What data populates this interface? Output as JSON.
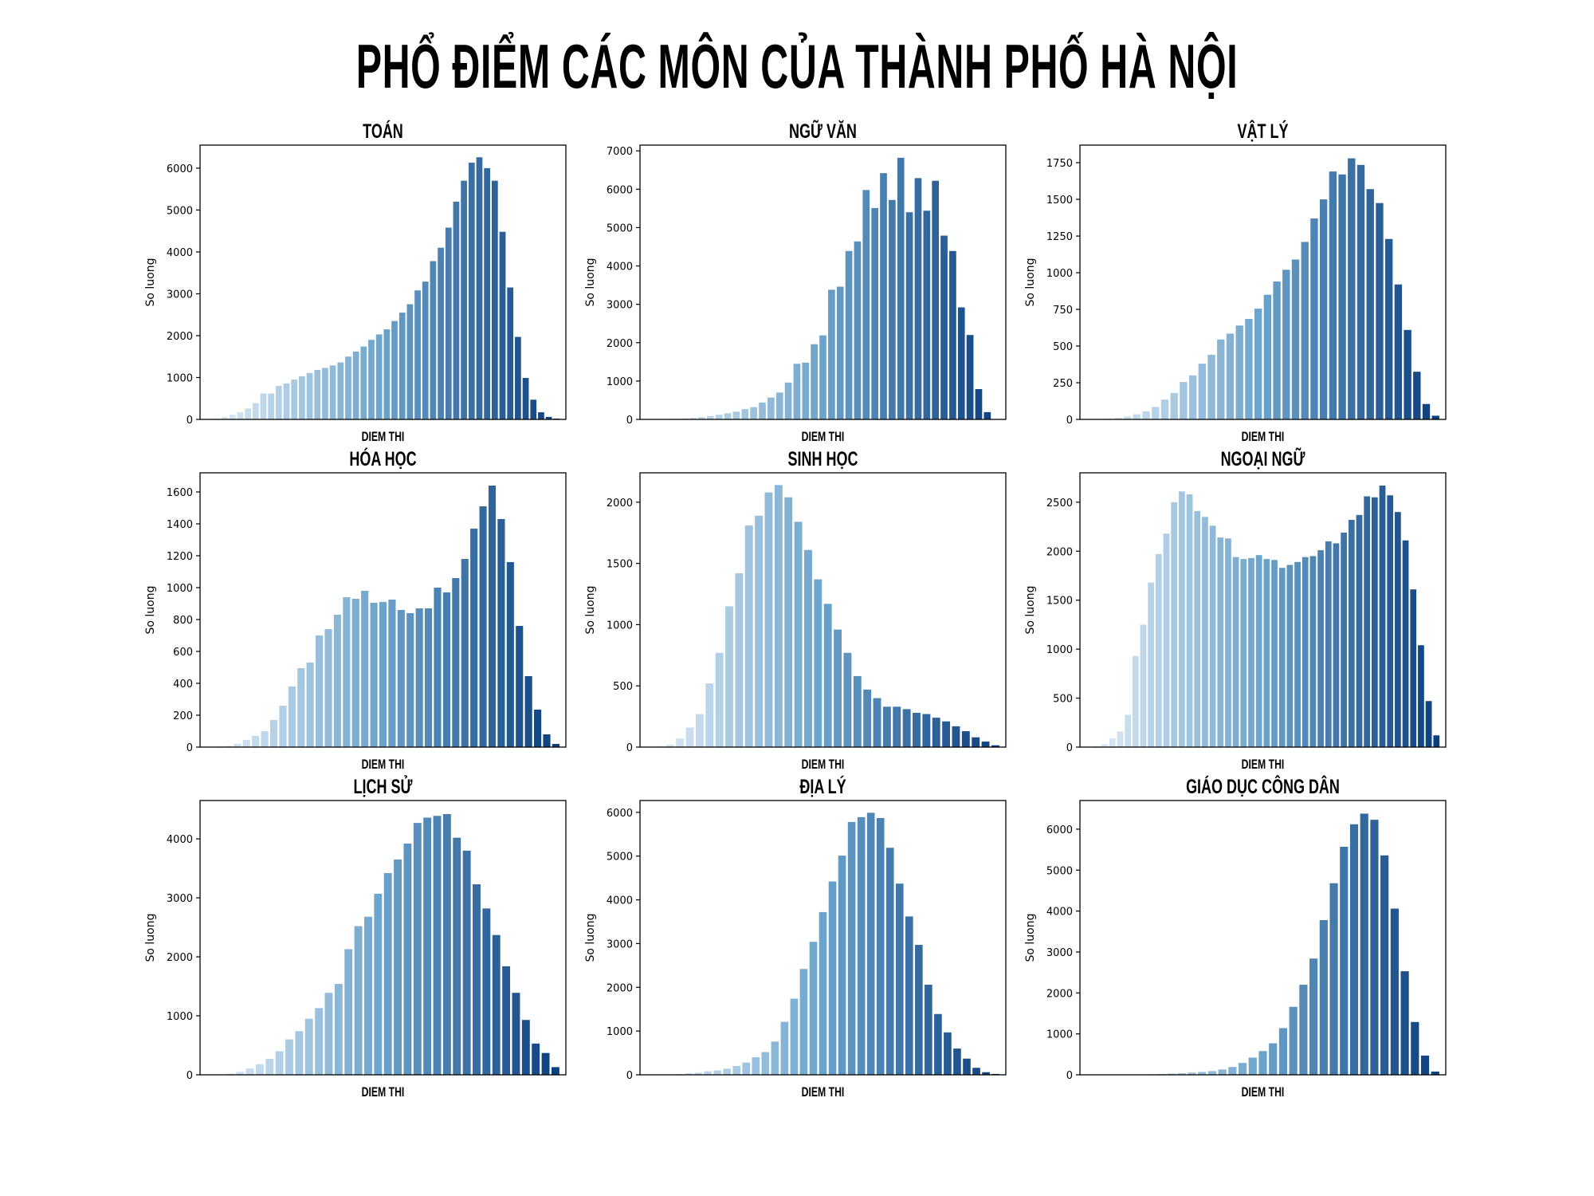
{
  "page_title": "PHỔ ĐIỂM CÁC MÔN CỦA THÀNH PHỐ HÀ NỘI",
  "palette": {
    "light": "#e3eef8",
    "mid": "#6ba3cb",
    "dark": "#0c3f7e",
    "axis": "#000000"
  },
  "chart_data": [
    {
      "type": "bar",
      "title": "TOÁN",
      "xlabel": "DIEM THI",
      "ylabel": "So luong",
      "ylim": [
        0,
        6550
      ],
      "yticks": [
        0,
        1000,
        2000,
        3000,
        4000,
        5000,
        6000
      ],
      "ytick_labels": [
        "0",
        "1000",
        "2000",
        "3000",
        "4000",
        "5000",
        "6000"
      ],
      "values": [
        5,
        20,
        60,
        110,
        170,
        260,
        390,
        620,
        620,
        800,
        860,
        950,
        1030,
        1110,
        1180,
        1230,
        1290,
        1360,
        1500,
        1620,
        1740,
        1900,
        2030,
        2150,
        2350,
        2550,
        2750,
        3080,
        3290,
        3780,
        4100,
        4580,
        5200,
        5700,
        6130,
        6260,
        6000,
        5700,
        4480,
        3150,
        1970,
        990,
        470,
        170,
        60,
        20
      ]
    },
    {
      "type": "bar",
      "title": "NGỮ VĂN",
      "xlabel": "DIEM THI",
      "ylabel": "So luong",
      "ylim": [
        0,
        7150
      ],
      "yticks": [
        0,
        1000,
        2000,
        3000,
        4000,
        5000,
        6000,
        7000
      ],
      "ytick_labels": [
        "0",
        "1000",
        "2000",
        "3000",
        "4000",
        "5000",
        "6000",
        "7000"
      ],
      "values": [
        3,
        5,
        8,
        15,
        25,
        40,
        60,
        90,
        120,
        160,
        200,
        270,
        320,
        440,
        570,
        700,
        960,
        1450,
        1480,
        1960,
        2190,
        3380,
        3460,
        4390,
        4640,
        5980,
        5510,
        6420,
        5720,
        6820,
        5400,
        6290,
        5440,
        6220,
        4790,
        4390,
        2920,
        2200,
        790,
        190,
        10
      ]
    },
    {
      "type": "bar",
      "title": "VẬT LÝ",
      "xlabel": "DIEM THI",
      "ylabel": "So luong",
      "ylim": [
        0,
        1870
      ],
      "yticks": [
        0,
        250,
        500,
        750,
        1000,
        1250,
        1500,
        1750
      ],
      "ytick_labels": [
        "0",
        "250",
        "500",
        "750",
        "1000",
        "1250",
        "1500",
        "1750"
      ],
      "values": [
        2,
        3,
        5,
        10,
        20,
        35,
        55,
        85,
        135,
        180,
        255,
        300,
        380,
        440,
        545,
        585,
        640,
        685,
        755,
        850,
        940,
        1020,
        1090,
        1210,
        1370,
        1500,
        1690,
        1670,
        1780,
        1735,
        1570,
        1475,
        1230,
        920,
        610,
        325,
        105,
        25
      ]
    },
    {
      "type": "bar",
      "title": "HÓA HỌC",
      "xlabel": "DIEM THI",
      "ylabel": "So luong",
      "ylim": [
        0,
        1720
      ],
      "yticks": [
        0,
        200,
        400,
        600,
        800,
        1000,
        1200,
        1400,
        1600
      ],
      "ytick_labels": [
        "0",
        "200",
        "400",
        "600",
        "800",
        "1000",
        "1200",
        "1400",
        "1600"
      ],
      "values": [
        2,
        4,
        8,
        20,
        45,
        70,
        100,
        170,
        260,
        380,
        495,
        530,
        700,
        740,
        830,
        940,
        930,
        980,
        905,
        910,
        925,
        860,
        840,
        870,
        870,
        1000,
        970,
        1060,
        1180,
        1370,
        1510,
        1640,
        1430,
        1160,
        760,
        445,
        235,
        80,
        20
      ]
    },
    {
      "type": "bar",
      "title": "SINH HỌC",
      "xlabel": "DIEM THI",
      "ylabel": "So luong",
      "ylim": [
        0,
        2240
      ],
      "yticks": [
        0,
        500,
        1000,
        1500,
        2000
      ],
      "ytick_labels": [
        "0",
        "500",
        "1000",
        "1500",
        "2000"
      ],
      "values": [
        2,
        5,
        20,
        70,
        160,
        270,
        520,
        770,
        1150,
        1420,
        1810,
        1890,
        2080,
        2140,
        2040,
        1840,
        1610,
        1370,
        1170,
        960,
        770,
        580,
        470,
        400,
        330,
        330,
        310,
        280,
        270,
        240,
        210,
        170,
        130,
        80,
        45,
        15
      ]
    },
    {
      "type": "bar",
      "title": "NGOẠI NGỮ",
      "xlabel": "DIEM THI",
      "ylabel": "So luong",
      "ylim": [
        0,
        2800
      ],
      "yticks": [
        0,
        500,
        1000,
        1500,
        2000,
        2500
      ],
      "ytick_labels": [
        "0",
        "500",
        "1000",
        "1500",
        "2000",
        "2500"
      ],
      "values": [
        5,
        10,
        30,
        90,
        160,
        330,
        930,
        1250,
        1680,
        1970,
        2180,
        2500,
        2610,
        2580,
        2410,
        2350,
        2260,
        2140,
        2130,
        1940,
        1920,
        1930,
        1960,
        1920,
        1910,
        1830,
        1860,
        1890,
        1940,
        1950,
        2010,
        2100,
        2080,
        2190,
        2320,
        2370,
        2560,
        2550,
        2670,
        2570,
        2400,
        2110,
        1610,
        1040,
        470,
        120
      ]
    },
    {
      "type": "bar",
      "title": "LỊCH SỬ",
      "xlabel": "DIEM THI",
      "ylabel": "So luong",
      "ylim": [
        0,
        4650
      ],
      "yticks": [
        0,
        1000,
        2000,
        3000,
        4000
      ],
      "ytick_labels": [
        "0",
        "1000",
        "2000",
        "3000",
        "4000"
      ],
      "values": [
        3,
        8,
        20,
        50,
        110,
        180,
        270,
        400,
        600,
        740,
        950,
        1130,
        1390,
        1540,
        2130,
        2520,
        2680,
        3070,
        3420,
        3650,
        3920,
        4270,
        4360,
        4390,
        4420,
        4020,
        3800,
        3230,
        2820,
        2370,
        1840,
        1390,
        930,
        530,
        370,
        130
      ]
    },
    {
      "type": "bar",
      "title": "ĐỊA LÝ",
      "xlabel": "DIEM THI",
      "ylabel": "So luong",
      "ylim": [
        0,
        6270
      ],
      "yticks": [
        0,
        1000,
        2000,
        3000,
        4000,
        5000,
        6000
      ],
      "ytick_labels": [
        "0",
        "1000",
        "2000",
        "3000",
        "4000",
        "5000",
        "6000"
      ],
      "values": [
        2,
        5,
        10,
        20,
        35,
        50,
        80,
        100,
        140,
        200,
        280,
        400,
        520,
        760,
        1210,
        1740,
        2420,
        3040,
        3720,
        4420,
        5010,
        5780,
        5890,
        5990,
        5870,
        5190,
        4370,
        3620,
        2970,
        2060,
        1390,
        970,
        600,
        370,
        160,
        60,
        20
      ]
    },
    {
      "type": "bar",
      "title": "GIÁO DỤC CÔNG DÂN",
      "xlabel": "DIEM THI",
      "ylabel": "So luong",
      "ylim": [
        0,
        6700
      ],
      "yticks": [
        0,
        1000,
        2000,
        3000,
        4000,
        5000,
        6000
      ],
      "ytick_labels": [
        "0",
        "1000",
        "2000",
        "3000",
        "4000",
        "5000",
        "6000"
      ],
      "values": [
        1,
        2,
        3,
        5,
        8,
        10,
        15,
        20,
        30,
        40,
        55,
        70,
        90,
        130,
        190,
        290,
        420,
        580,
        770,
        1140,
        1660,
        2200,
        2840,
        3780,
        4680,
        5570,
        6120,
        6380,
        6230,
        5360,
        4060,
        2530,
        1290,
        470,
        80
      ]
    }
  ]
}
